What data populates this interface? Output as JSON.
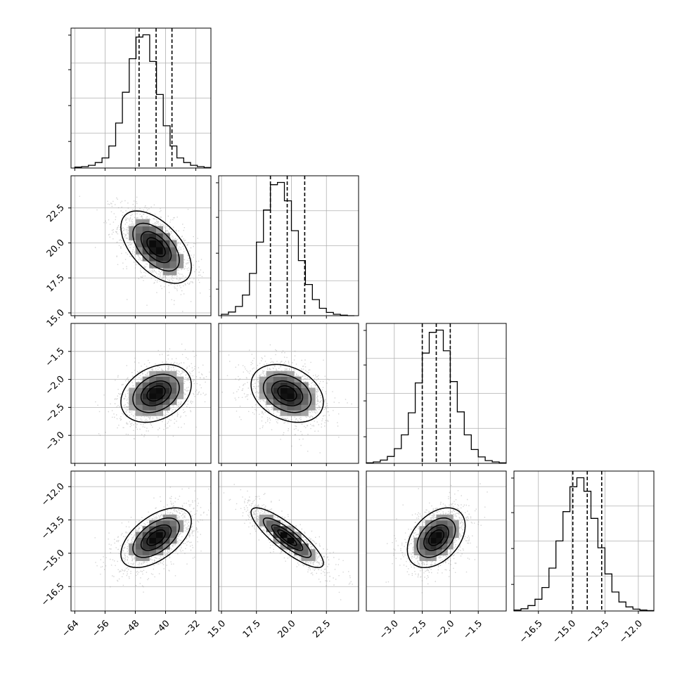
{
  "figure": {
    "background": "#ffffff",
    "grid": true,
    "colors": {
      "axes": "#000000",
      "grid": "#b0b0b0",
      "scatter": "#888888",
      "contour": "#000000",
      "histogram": "#000000"
    }
  },
  "chart_data": {
    "type": "corner",
    "params": [
      {
        "range": [
          -65,
          -28
        ],
        "ticks": [
          -64,
          -56,
          -48,
          -40,
          -32
        ],
        "tick_labels": [
          "−64",
          "−56",
          "−48",
          "−40",
          "−32"
        ],
        "mean": -42.5,
        "sigma": 4.5,
        "quantiles": [
          -47.0,
          -42.5,
          -38.3
        ],
        "hist": {
          "edges": [
            -64.0,
            -62.2,
            -60.4,
            -58.6,
            -56.8,
            -55.0,
            -53.2,
            -51.4,
            -49.6,
            -47.8,
            -46.0,
            -44.2,
            -42.4,
            -40.6,
            -38.8,
            -37.0,
            -35.2,
            -33.4,
            -31.6,
            -29.8,
            -28.0
          ],
          "counts": [
            2,
            3,
            6,
            12,
            22,
            48,
            98,
            165,
            238,
            285,
            290,
            232,
            160,
            92,
            48,
            22,
            12,
            6,
            3,
            1
          ]
        }
      },
      {
        "range": [
          14.8,
          24.8
        ],
        "ticks": [
          15.0,
          17.5,
          20.0,
          22.5
        ],
        "tick_labels": [
          "15.0",
          "17.5",
          "20.0",
          "22.5"
        ],
        "mean": 19.7,
        "sigma": 1.25,
        "quantiles": [
          18.5,
          19.7,
          20.95
        ],
        "hist": {
          "edges": [
            15.0,
            15.5,
            16.0,
            16.5,
            17.0,
            17.5,
            18.0,
            18.5,
            19.0,
            19.5,
            20.0,
            20.5,
            21.0,
            21.5,
            22.0,
            22.5,
            23.0,
            23.5,
            24.0,
            24.5
          ],
          "counts": [
            3,
            8,
            20,
            45,
            92,
            160,
            230,
            285,
            290,
            250,
            185,
            120,
            68,
            35,
            16,
            7,
            3,
            1,
            0
          ]
        }
      },
      {
        "range": [
          -3.5,
          -1.0
        ],
        "ticks": [
          -3.0,
          -2.5,
          -2.0,
          -1.5
        ],
        "tick_labels": [
          "−3.0",
          "−2.5",
          "−2.0",
          "−1.5"
        ],
        "mean": -2.25,
        "sigma": 0.25,
        "quantiles": [
          -2.5,
          -2.25,
          -2.0
        ],
        "hist": {
          "edges": [
            -3.5,
            -3.375,
            -3.25,
            -3.125,
            -3.0,
            -2.875,
            -2.75,
            -2.625,
            -2.5,
            -2.375,
            -2.25,
            -2.125,
            -2.0,
            -1.875,
            -1.75,
            -1.625,
            -1.5,
            -1.375,
            -1.25,
            -1.125,
            -1.0
          ],
          "counts": [
            1,
            3,
            7,
            15,
            32,
            62,
            110,
            175,
            240,
            285,
            290,
            245,
            178,
            112,
            62,
            30,
            14,
            6,
            3,
            1
          ]
        }
      },
      {
        "range": [
          -17.6,
          -11.3
        ],
        "ticks": [
          -16.5,
          -15.0,
          -13.5,
          -12.0
        ],
        "tick_labels": [
          "−16.5",
          "−15.0",
          "−13.5",
          "−12.0"
        ],
        "mean": -14.3,
        "sigma": 0.65,
        "quantiles": [
          -14.95,
          -14.3,
          -13.65
        ],
        "hist": {
          "edges": [
            -17.6,
            -17.285,
            -16.97,
            -16.655,
            -16.34,
            -16.025,
            -15.71,
            -15.395,
            -15.08,
            -14.765,
            -14.45,
            -14.135,
            -13.82,
            -13.505,
            -13.19,
            -12.875,
            -12.56,
            -12.245,
            -11.93,
            -11.615,
            -11.3
          ],
          "counts": [
            2,
            5,
            12,
            26,
            52,
            95,
            155,
            220,
            275,
            295,
            265,
            205,
            140,
            82,
            42,
            20,
            9,
            4,
            2,
            1
          ]
        }
      }
    ],
    "pairs": [
      {
        "row": 1,
        "col": 0,
        "corr": -0.55
      },
      {
        "row": 2,
        "col": 0,
        "corr": 0.3
      },
      {
        "row": 2,
        "col": 1,
        "corr": -0.3
      },
      {
        "row": 3,
        "col": 0,
        "corr": 0.55
      },
      {
        "row": 3,
        "col": 1,
        "corr": -0.85
      },
      {
        "row": 3,
        "col": 2,
        "corr": 0.4
      }
    ],
    "contour_levels_sigma": [
      0.5,
      1.0,
      1.5,
      2.0
    ]
  }
}
